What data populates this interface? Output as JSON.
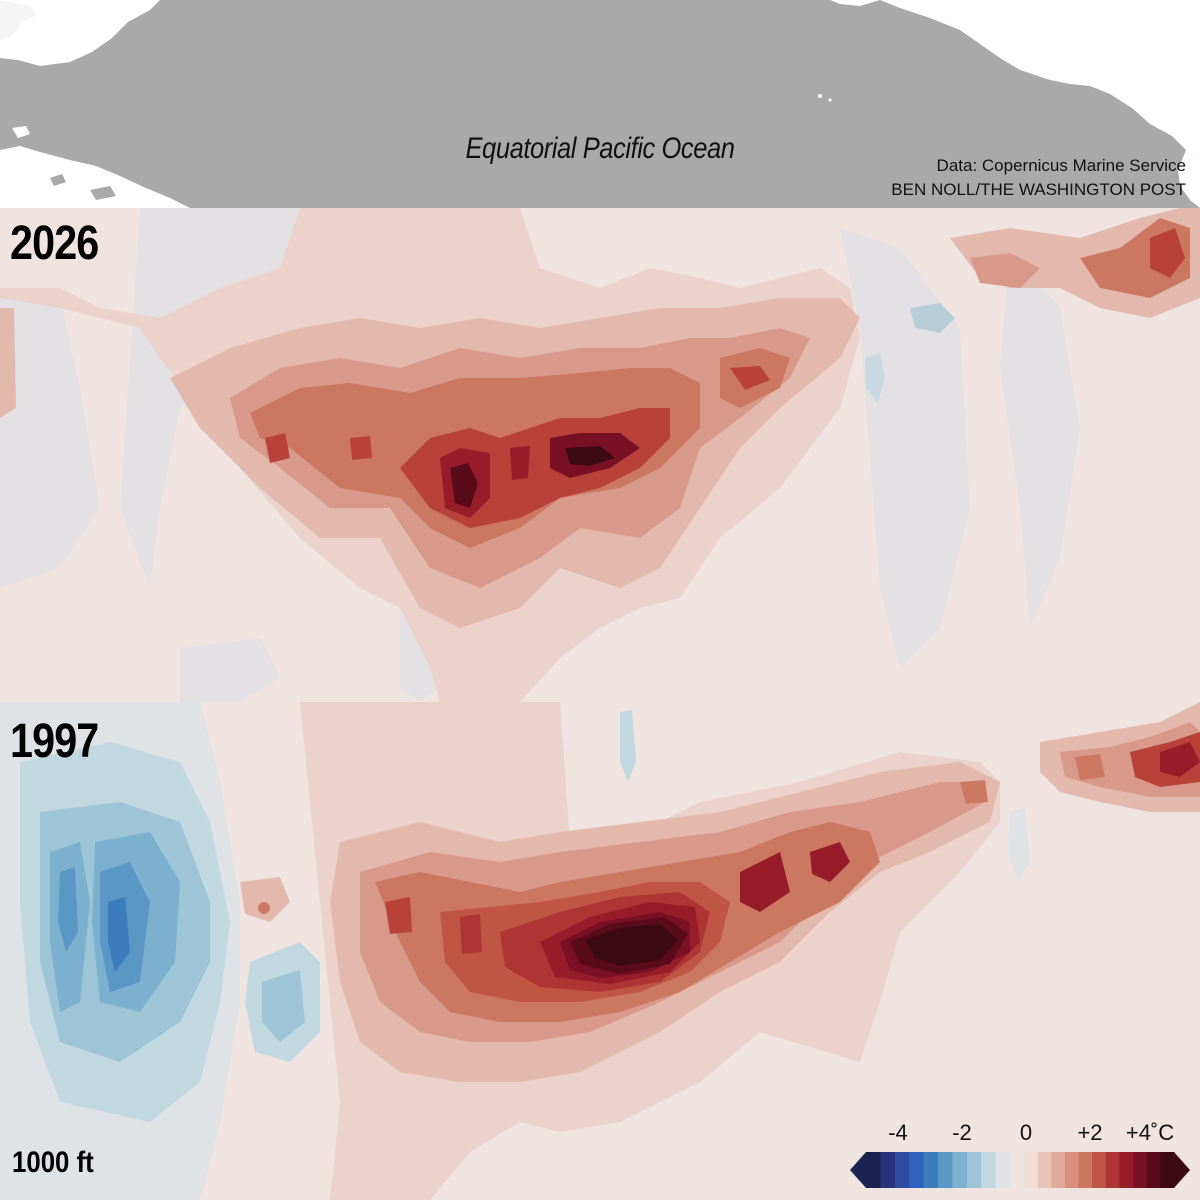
{
  "header": {
    "ocean_label": "Equatorial Pacific Ocean",
    "credit_source": "Data: Copernicus Marine Service",
    "credit_author": "BEN NOLL/THE WASHINGTON POST"
  },
  "panels": [
    {
      "year": "2026"
    },
    {
      "year": "1997"
    }
  ],
  "depth_label": "1000 ft",
  "legend": {
    "ticks": [
      "-4",
      "-2",
      "0",
      "+2",
      "+4˚C"
    ],
    "cool_colors": [
      "#1b2450",
      "#26337a",
      "#2c4aa0",
      "#2f63bd",
      "#3c7dbd",
      "#5a97c5",
      "#7cb0cf",
      "#9ec5d6",
      "#c2d8e0",
      "#dfe3e5"
    ],
    "warm_colors": [
      "#f2dcd6",
      "#e8c3b8",
      "#e0ab9a",
      "#d6907c",
      "#cc7560",
      "#c05545",
      "#ad3533",
      "#961c2a",
      "#7a1024",
      "#5a0b1b",
      "#3c0a12"
    ]
  },
  "colors": {
    "land": "#ffffff",
    "sea": "#a9a9a9",
    "neutral": "#f0e4e1"
  }
}
